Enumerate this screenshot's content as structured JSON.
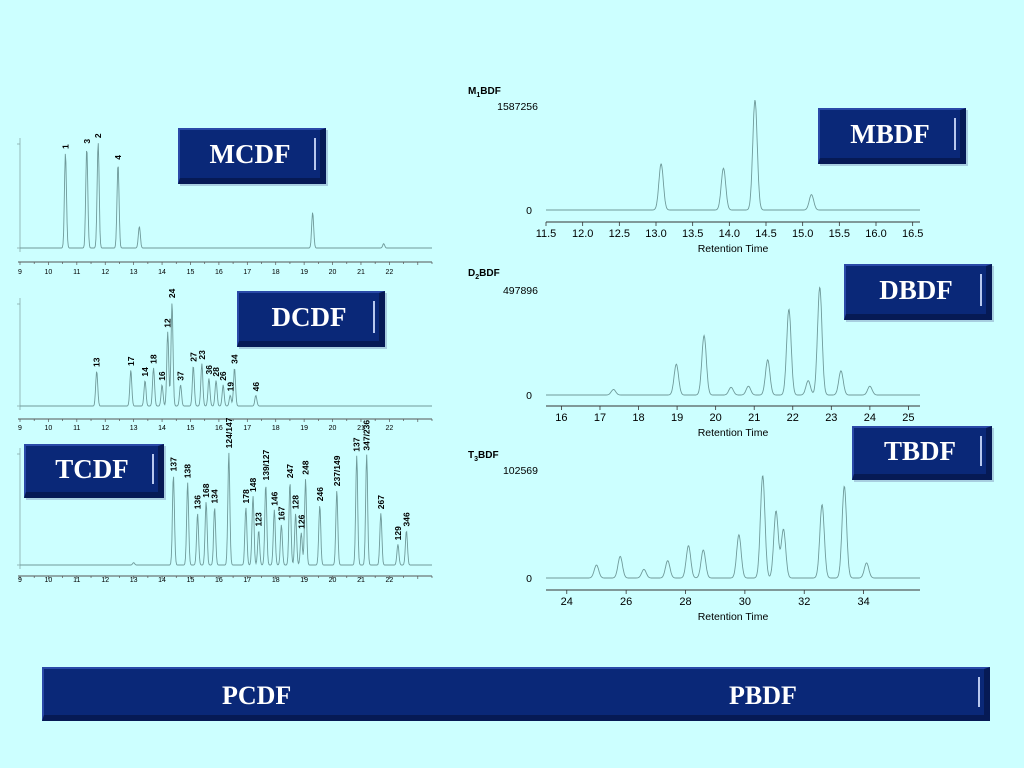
{
  "boxes": {
    "mcdf": "MCDF",
    "dcdf": "DCDF",
    "tcdf": "TCDF",
    "mbdf": "MBDF",
    "dbdf": "DBDF",
    "tbdf": "TBDF"
  },
  "banner": {
    "left": "PCDF",
    "right": "PBDF"
  },
  "chart_data": [
    {
      "id": "mcdf",
      "type": "line",
      "title": "",
      "xlabel": "",
      "ylabel": "",
      "xlim": [
        9,
        23.5
      ],
      "ylim": [
        0,
        1
      ],
      "x_ticks": [
        9,
        10,
        11,
        12,
        13,
        14,
        15,
        16,
        17,
        18,
        19,
        20,
        21,
        22
      ],
      "baseline": 0,
      "peaks": [
        {
          "x": 10.6,
          "h": 0.88,
          "label": "1"
        },
        {
          "x": 11.35,
          "h": 0.93,
          "label": "3"
        },
        {
          "x": 11.75,
          "h": 0.98,
          "label": "2"
        },
        {
          "x": 12.45,
          "h": 0.78,
          "label": "4"
        },
        {
          "x": 13.2,
          "h": 0.2,
          "label": ""
        },
        {
          "x": 19.3,
          "h": 0.33,
          "label": ""
        },
        {
          "x": 21.8,
          "h": 0.04,
          "label": ""
        }
      ]
    },
    {
      "id": "dcdf",
      "type": "line",
      "title": "",
      "xlabel": "",
      "ylabel": "",
      "xlim": [
        9,
        23.5
      ],
      "ylim": [
        0,
        1
      ],
      "x_ticks": [
        9,
        10,
        11,
        12,
        13,
        14,
        15,
        16,
        17,
        18,
        19,
        20,
        21,
        22
      ],
      "baseline": 0,
      "peaks": [
        {
          "x": 11.7,
          "h": 0.33,
          "label": "13"
        },
        {
          "x": 12.9,
          "h": 0.34,
          "label": "17"
        },
        {
          "x": 13.4,
          "h": 0.24,
          "label": "14"
        },
        {
          "x": 13.7,
          "h": 0.36,
          "label": "18"
        },
        {
          "x": 14.0,
          "h": 0.2,
          "label": "16"
        },
        {
          "x": 14.2,
          "h": 0.7,
          "label": "12"
        },
        {
          "x": 14.35,
          "h": 0.98,
          "label": "24"
        },
        {
          "x": 14.65,
          "h": 0.2,
          "label": "37"
        },
        {
          "x": 15.1,
          "h": 0.38,
          "label": "27"
        },
        {
          "x": 15.4,
          "h": 0.4,
          "label": "23"
        },
        {
          "x": 15.65,
          "h": 0.26,
          "label": "36"
        },
        {
          "x": 15.9,
          "h": 0.24,
          "label": "28"
        },
        {
          "x": 16.15,
          "h": 0.2,
          "label": "26"
        },
        {
          "x": 16.4,
          "h": 0.1,
          "label": "19"
        },
        {
          "x": 16.55,
          "h": 0.36,
          "label": "34"
        },
        {
          "x": 17.3,
          "h": 0.1,
          "label": "46"
        }
      ]
    },
    {
      "id": "tcdf",
      "type": "line",
      "title": "",
      "xlabel": "",
      "ylabel": "",
      "xlim": [
        9,
        23.5
      ],
      "ylim": [
        0,
        1
      ],
      "x_ticks": [
        9,
        10,
        11,
        12,
        13,
        14,
        15,
        16,
        17,
        18,
        19,
        20,
        21,
        22
      ],
      "baseline": 0,
      "peaks": [
        {
          "x": 13.0,
          "h": 0.02,
          "label": ""
        },
        {
          "x": 14.4,
          "h": 0.78,
          "label": "137"
        },
        {
          "x": 14.9,
          "h": 0.72,
          "label": "138"
        },
        {
          "x": 15.25,
          "h": 0.45,
          "label": "136"
        },
        {
          "x": 15.55,
          "h": 0.55,
          "label": "168"
        },
        {
          "x": 15.85,
          "h": 0.5,
          "label": "134"
        },
        {
          "x": 16.35,
          "h": 0.98,
          "label": "124/147"
        },
        {
          "x": 16.95,
          "h": 0.5,
          "label": "178"
        },
        {
          "x": 17.2,
          "h": 0.6,
          "label": "148"
        },
        {
          "x": 17.4,
          "h": 0.3,
          "label": "123"
        },
        {
          "x": 17.65,
          "h": 0.7,
          "label": "139/127"
        },
        {
          "x": 17.95,
          "h": 0.48,
          "label": "146"
        },
        {
          "x": 18.2,
          "h": 0.35,
          "label": "167"
        },
        {
          "x": 18.5,
          "h": 0.72,
          "label": "247"
        },
        {
          "x": 18.7,
          "h": 0.45,
          "label": "128"
        },
        {
          "x": 18.9,
          "h": 0.28,
          "label": "126"
        },
        {
          "x": 19.05,
          "h": 0.75,
          "label": "248"
        },
        {
          "x": 19.55,
          "h": 0.52,
          "label": "246"
        },
        {
          "x": 20.15,
          "h": 0.65,
          "label": "237/149"
        },
        {
          "x": 20.85,
          "h": 0.95,
          "label": "137"
        },
        {
          "x": 21.2,
          "h": 0.96,
          "label": "347/236"
        },
        {
          "x": 21.7,
          "h": 0.45,
          "label": "267"
        },
        {
          "x": 22.3,
          "h": 0.18,
          "label": "129"
        },
        {
          "x": 22.6,
          "h": 0.3,
          "label": "346"
        }
      ]
    },
    {
      "id": "mbdf",
      "type": "line",
      "title": "M1BDF",
      "title_main": "M",
      "title_sub": "1",
      "title_rest": "BDF",
      "max_label": "1587256",
      "xlabel": "Retention Time",
      "ylabel": "",
      "xlim": [
        11.5,
        16.6
      ],
      "ylim": [
        0,
        1587256
      ],
      "x_ticks": [
        "11.5",
        "12.0",
        "12.5",
        "13.0",
        "13.5",
        "14.0",
        "14.5",
        "15.0",
        "15.5",
        "16.0",
        "16.5"
      ],
      "y_ticks": [
        "0"
      ],
      "peaks": [
        {
          "x": 13.07,
          "h": 0.42,
          "label": ""
        },
        {
          "x": 13.92,
          "h": 0.38,
          "label": ""
        },
        {
          "x": 14.35,
          "h": 1.0,
          "label": ""
        },
        {
          "x": 15.12,
          "h": 0.14,
          "label": ""
        }
      ]
    },
    {
      "id": "dbdf",
      "type": "line",
      "title": "D2BDF",
      "title_main": "D",
      "title_sub": "2",
      "title_rest": "BDF",
      "max_label": "497896",
      "xlabel": "Retention Time",
      "ylabel": "",
      "xlim": [
        15.6,
        25.3
      ],
      "ylim": [
        0,
        497896
      ],
      "x_ticks": [
        "16",
        "17",
        "18",
        "19",
        "20",
        "21",
        "22",
        "23",
        "24",
        "25"
      ],
      "y_ticks": [
        "0"
      ],
      "peaks": [
        {
          "x": 17.35,
          "h": 0.05,
          "label": ""
        },
        {
          "x": 18.98,
          "h": 0.28,
          "label": ""
        },
        {
          "x": 19.7,
          "h": 0.54,
          "label": ""
        },
        {
          "x": 20.4,
          "h": 0.07,
          "label": ""
        },
        {
          "x": 20.85,
          "h": 0.08,
          "label": ""
        },
        {
          "x": 21.35,
          "h": 0.32,
          "label": ""
        },
        {
          "x": 21.9,
          "h": 0.78,
          "label": ""
        },
        {
          "x": 22.4,
          "h": 0.13,
          "label": ""
        },
        {
          "x": 22.7,
          "h": 0.98,
          "label": ""
        },
        {
          "x": 23.25,
          "h": 0.22,
          "label": ""
        },
        {
          "x": 24.0,
          "h": 0.08,
          "label": ""
        }
      ]
    },
    {
      "id": "tbdf",
      "type": "line",
      "title": "T3BDF",
      "title_main": "T",
      "title_sub": "3",
      "title_rest": "BDF",
      "max_label": "102569",
      "xlabel": "Retention Time",
      "ylabel": "",
      "xlim": [
        23.3,
        35.9
      ],
      "ylim": [
        0,
        102569
      ],
      "x_ticks": [
        "24",
        "26",
        "28",
        "30",
        "32",
        "34"
      ],
      "y_ticks": [
        "0"
      ],
      "peaks": [
        {
          "x": 25.0,
          "h": 0.12,
          "label": ""
        },
        {
          "x": 25.8,
          "h": 0.2,
          "label": ""
        },
        {
          "x": 26.6,
          "h": 0.08,
          "label": ""
        },
        {
          "x": 27.4,
          "h": 0.16,
          "label": ""
        },
        {
          "x": 28.1,
          "h": 0.3,
          "label": ""
        },
        {
          "x": 28.6,
          "h": 0.26,
          "label": ""
        },
        {
          "x": 29.8,
          "h": 0.4,
          "label": ""
        },
        {
          "x": 30.6,
          "h": 0.95,
          "label": ""
        },
        {
          "x": 31.05,
          "h": 0.62,
          "label": ""
        },
        {
          "x": 31.3,
          "h": 0.45,
          "label": ""
        },
        {
          "x": 32.6,
          "h": 0.68,
          "label": ""
        },
        {
          "x": 33.35,
          "h": 0.85,
          "label": ""
        },
        {
          "x": 34.1,
          "h": 0.14,
          "label": ""
        }
      ]
    }
  ]
}
